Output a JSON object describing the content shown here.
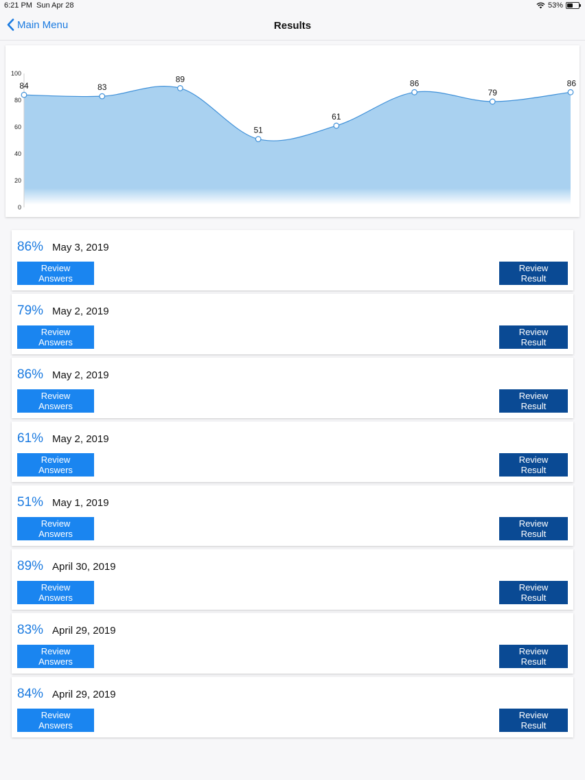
{
  "status_bar": {
    "time": "6:21 PM",
    "date": "Sun Apr 28",
    "battery": "53%",
    "battery_level": 0.53
  },
  "nav": {
    "back_label": "Main Menu",
    "title": "Results"
  },
  "chart_data": {
    "type": "area",
    "x": [
      1,
      2,
      3,
      4,
      5,
      6,
      7,
      8
    ],
    "values": [
      84,
      83,
      89,
      51,
      61,
      86,
      79,
      86
    ],
    "data_labels": [
      "84",
      "83",
      "89",
      "51",
      "61",
      "86",
      "79",
      "86"
    ],
    "ylim": [
      0,
      100
    ],
    "yticks": [
      0,
      20,
      40,
      60,
      80,
      100
    ],
    "ytick_labels": [
      "0",
      "20",
      "40",
      "60",
      "80",
      "100"
    ],
    "grid": false,
    "fill_color": "#a9d1f0",
    "line_color": "#3d8fd8"
  },
  "buttons": {
    "review_answers": "Review Answers",
    "review_result": "Review Result"
  },
  "results": [
    {
      "score": "86%",
      "date": "May 3, 2019"
    },
    {
      "score": "79%",
      "date": "May 2, 2019"
    },
    {
      "score": "86%",
      "date": "May 2, 2019"
    },
    {
      "score": "61%",
      "date": "May 2, 2019"
    },
    {
      "score": "51%",
      "date": "May 1, 2019"
    },
    {
      "score": "89%",
      "date": "April 30, 2019"
    },
    {
      "score": "83%",
      "date": "April 29, 2019"
    },
    {
      "score": "84%",
      "date": "April 29, 2019"
    }
  ],
  "colors": {
    "accent": "#1a7ae0",
    "primary_button": "#1a85f0",
    "dark_button": "#0a4a94"
  }
}
